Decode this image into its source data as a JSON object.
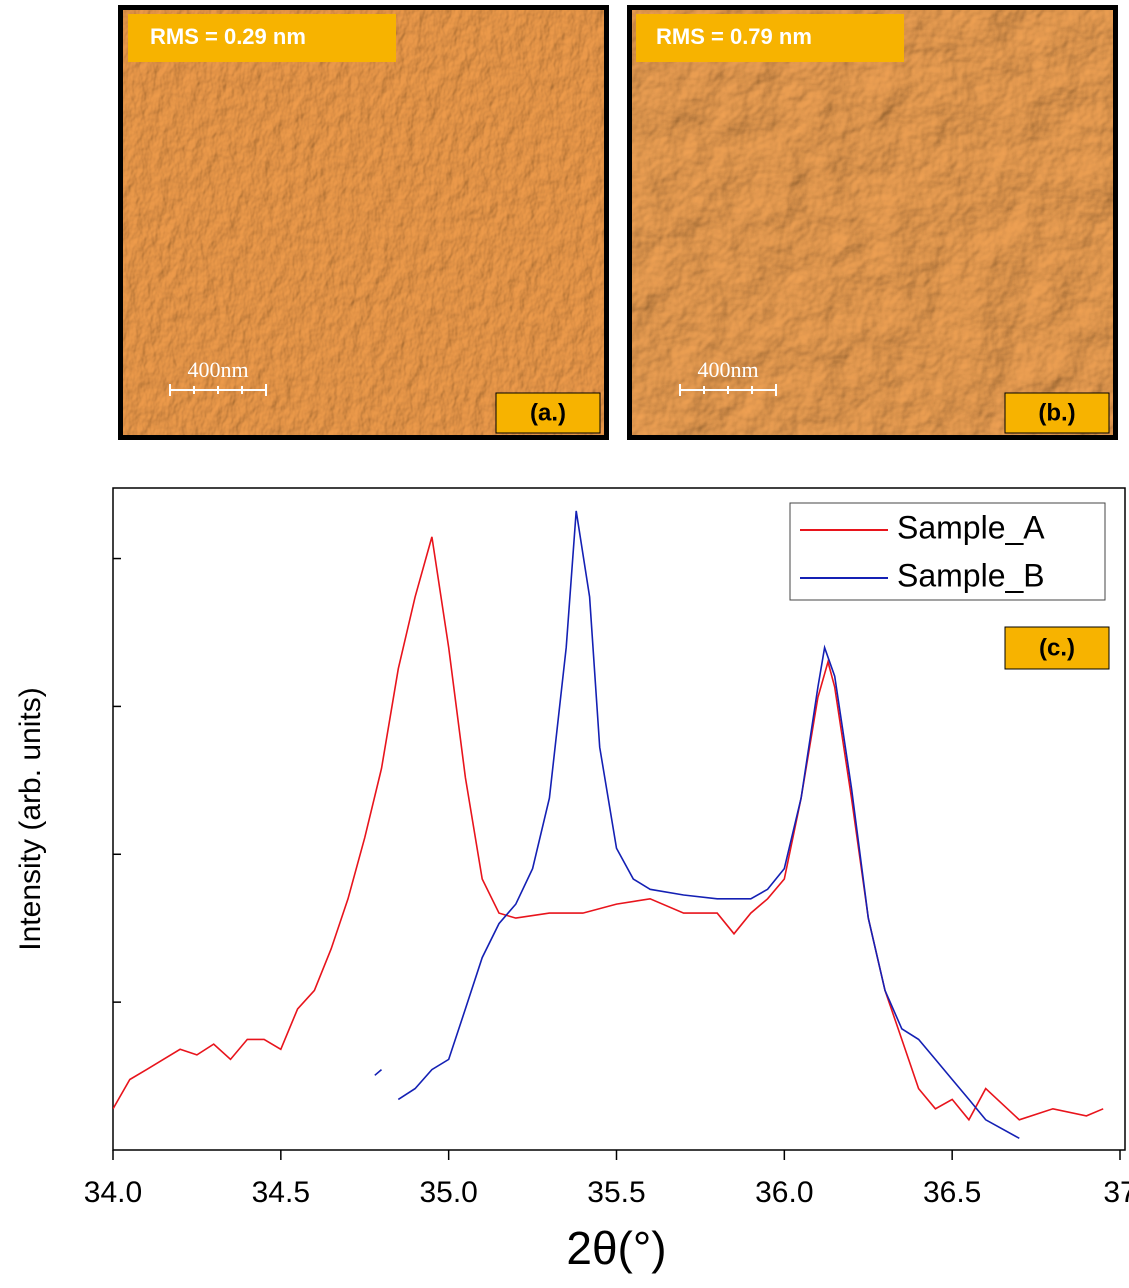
{
  "panels": [
    {
      "rms": "RMS = 0.29 nm",
      "scale": "400nm",
      "label": "(a.)"
    },
    {
      "rms": "RMS = 0.79 nm",
      "scale": "400nm",
      "label": "(b.)"
    }
  ],
  "chart_data": {
    "type": "line",
    "label": "(c.)",
    "x_label": "2θ(°)",
    "y_label": "Intensity (arb. units)",
    "log_y": true,
    "legend": "upper-right",
    "xlim": [
      34,
      37
    ],
    "ylim": [
      1,
      30000
    ],
    "xticks": [
      {
        "value": 34,
        "label": "34.0"
      },
      34.5,
      {
        "value": 35,
        "label": "35.0"
      },
      35.5,
      {
        "value": 36,
        "label": "36.0"
      },
      36.5,
      37
    ],
    "yticks": [
      10,
      100,
      1000,
      10000
    ],
    "series": [
      {
        "name": "Sample_A",
        "color": "#e8141c",
        "x": [
          34.0,
          34.05,
          34.1,
          34.15,
          34.2,
          34.25,
          34.3,
          34.35,
          34.4,
          34.45,
          34.5,
          34.55,
          34.6,
          34.65,
          34.7,
          34.75,
          34.8,
          34.85,
          34.9,
          34.95,
          35.0,
          35.05,
          35.1,
          35.15,
          35.2,
          35.3,
          35.4,
          35.5,
          35.6,
          35.7,
          35.8,
          35.85,
          35.9,
          35.95,
          36.0,
          36.05,
          36.1,
          36.13,
          36.15,
          36.2,
          36.25,
          36.3,
          36.35,
          36.4,
          36.45,
          36.5,
          36.55,
          36.6,
          36.7,
          36.8,
          36.9,
          36.95
        ],
        "values": [
          1.9,
          3.0,
          3.5,
          4.1,
          4.8,
          4.4,
          5.2,
          4.1,
          5.6,
          5.6,
          4.8,
          9,
          12,
          23,
          50,
          130,
          380,
          1800,
          5500,
          14000,
          2500,
          330,
          68,
          40,
          37,
          40,
          40,
          46,
          50,
          40,
          40,
          29,
          40,
          50,
          68,
          240,
          1150,
          2000,
          1350,
          240,
          37,
          12,
          5.6,
          2.6,
          1.9,
          2.2,
          1.6,
          2.6,
          1.6,
          1.9,
          1.7,
          1.9
        ]
      },
      {
        "name": "Sample_B",
        "color": "#1420b4",
        "x": [
          34.78,
          34.8,
          34.82,
          34.85,
          34.9,
          34.95,
          35.0,
          35.05,
          35.1,
          35.15,
          35.2,
          35.25,
          35.3,
          35.35,
          35.38,
          35.42,
          35.45,
          35.5,
          35.55,
          35.6,
          35.7,
          35.8,
          35.9,
          35.95,
          36.0,
          36.05,
          36.1,
          36.12,
          36.15,
          36.2,
          36.25,
          36.3,
          36.35,
          36.4,
          36.45,
          36.5,
          36.55,
          36.6,
          36.7
        ],
        "values": [
          3.2,
          3.5,
          null,
          2.2,
          2.6,
          3.5,
          4.1,
          9,
          20,
          34,
          46,
          80,
          240,
          2500,
          21000,
          5500,
          530,
          110,
          68,
          58,
          53,
          50,
          50,
          58,
          80,
          240,
          1350,
          2500,
          1600,
          280,
          37,
          12,
          6.6,
          5.6,
          4.1,
          3,
          2.2,
          1.6,
          1.2
        ]
      }
    ]
  }
}
